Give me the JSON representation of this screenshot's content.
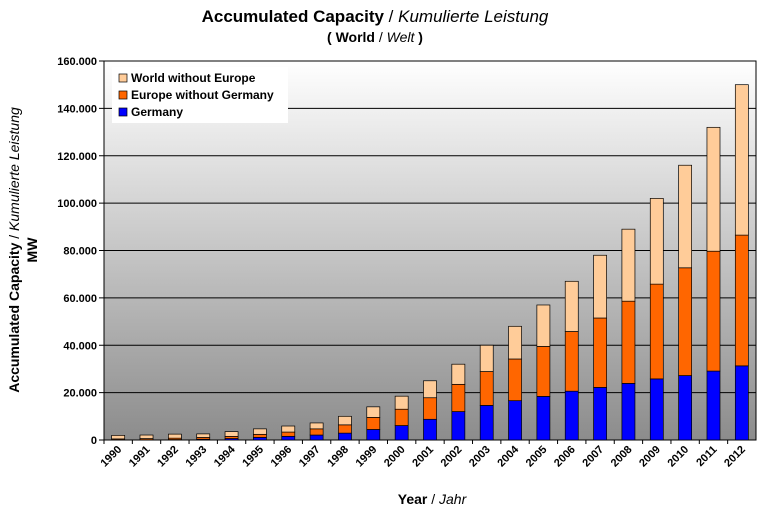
{
  "chart_data": {
    "type": "bar",
    "stacked": true,
    "title": {
      "main": "Accumulated Capacity",
      "separator": " / ",
      "main_translation": "Kumulierte Leistung",
      "sub_open": "( ",
      "sub": "World",
      "sub_separator": " / ",
      "sub_translation": "Welt",
      "sub_close": " )"
    },
    "ylabel": {
      "main": "Accumulated Capacity",
      "separator": " / ",
      "translation": "Kumulierte Leistung",
      "unit": "MW"
    },
    "xlabel": {
      "main": "Year",
      "separator": " / ",
      "translation": "Jahr"
    },
    "ylim": [
      0,
      160000
    ],
    "yticks": [
      0,
      20000,
      40000,
      60000,
      80000,
      100000,
      120000,
      140000,
      160000
    ],
    "ytick_labels": [
      "0",
      "20.000",
      "40.000",
      "60.000",
      "80.000",
      "100.000",
      "120.000",
      "140.000",
      "160.000"
    ],
    "grid": true,
    "legend_position": "top-left",
    "categories": [
      "1990",
      "1991",
      "1992",
      "1993",
      "1994",
      "1995",
      "1996",
      "1997",
      "1998",
      "1999",
      "2000",
      "2001",
      "2002",
      "2003",
      "2004",
      "2005",
      "2006",
      "2007",
      "2008",
      "2009",
      "2010",
      "2011",
      "2012"
    ],
    "series": [
      {
        "name": "Germany",
        "color": "#0000ff",
        "values": [
          60,
          100,
          180,
          330,
          630,
          1100,
          1550,
          2100,
          2900,
          4450,
          6100,
          8750,
          12000,
          14600,
          16600,
          18400,
          20600,
          22200,
          23900,
          25800,
          27200,
          29100,
          31300
        ]
      },
      {
        "name": "Europe without Germany",
        "color": "#ff6600",
        "values": [
          400,
          500,
          600,
          750,
          900,
          1300,
          1800,
          2600,
          3500,
          5100,
          6900,
          9100,
          11500,
          14300,
          17600,
          21100,
          25200,
          29300,
          34700,
          40000,
          45500,
          50600,
          55200
        ]
      },
      {
        "name": "World without Europe",
        "color": "#ffcc99",
        "values": [
          1500,
          1500,
          1700,
          1500,
          2000,
          2300,
          2550,
          2500,
          3600,
          4450,
          5500,
          7150,
          8500,
          11100,
          13800,
          17500,
          21200,
          26500,
          30400,
          36200,
          43300,
          52300,
          63500
        ]
      }
    ]
  }
}
